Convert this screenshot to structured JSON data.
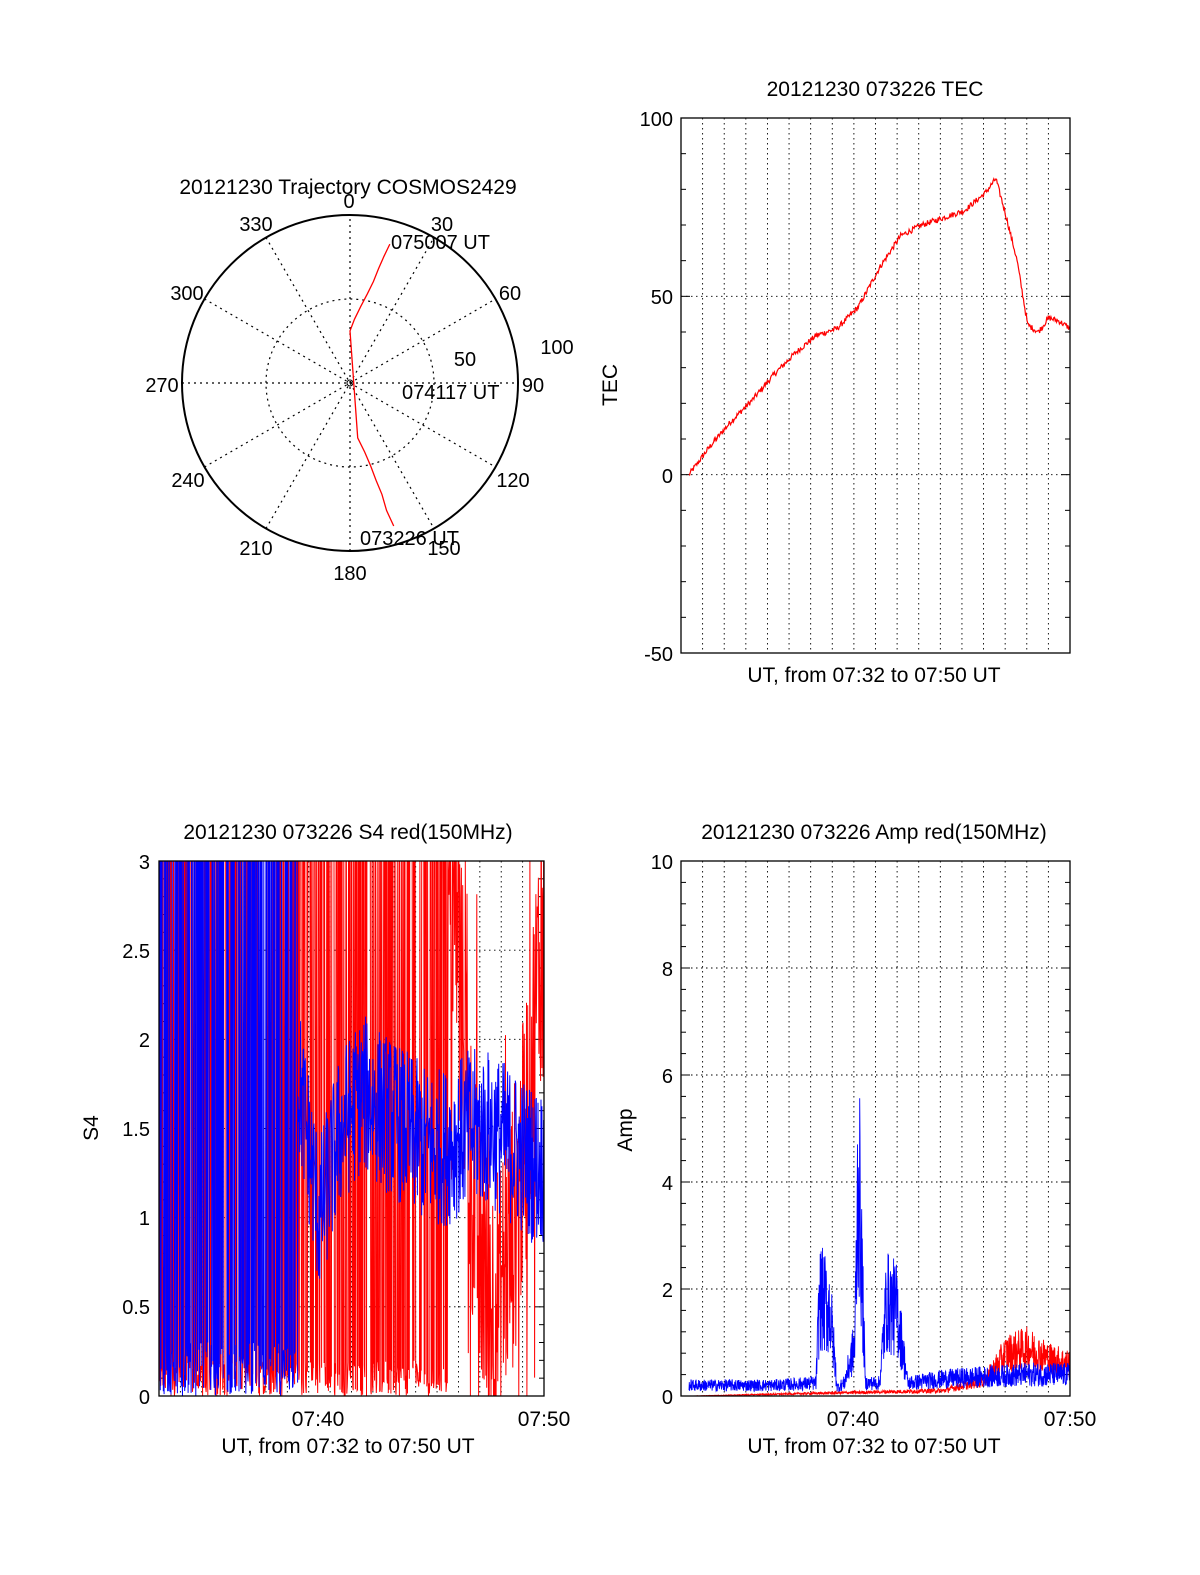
{
  "colors": {
    "red": "#ff0000",
    "blue": "#0000ff",
    "axis": "#000000",
    "grid": "#000000"
  },
  "chart_data": [
    {
      "type": "polar",
      "title": "20121230 Trajectory COSMOS2429",
      "azimuth_labels": [
        "0",
        "30",
        "60",
        "90",
        "120",
        "150",
        "180",
        "210",
        "240",
        "270",
        "300",
        "330"
      ],
      "radial_labels": [
        "50",
        "100"
      ],
      "radial_range": [
        0,
        100
      ],
      "grid": true,
      "series": [
        {
          "color": "red",
          "points_az_r": [
            [
              16,
              86
            ],
            [
              15,
              78
            ],
            [
              14,
              70
            ],
            [
              13,
              62
            ],
            [
              11,
              54
            ],
            [
              8,
              46
            ],
            [
              4,
              38
            ],
            [
              0,
              31
            ],
            [
              172,
              33
            ],
            [
              168,
              42
            ],
            [
              166,
              51
            ],
            [
              165,
              60
            ],
            [
              164,
              69
            ],
            [
              164,
              79
            ],
            [
              163,
              89
            ]
          ]
        }
      ],
      "annotations": [
        {
          "text": "075007 UT",
          "az": 16,
          "r": 86
        },
        {
          "text": "074117 UT",
          "az": 104,
          "r": 33
        },
        {
          "text": "073226 UT",
          "az": 163,
          "r": 89
        }
      ]
    },
    {
      "type": "line",
      "title": "20121230 073226 TEC",
      "xlabel": "UT, from 07:32 to 07:50 UT",
      "ylabel": "TEC",
      "xlim": [
        "07:32",
        "07:50"
      ],
      "ylim": [
        -50,
        100
      ],
      "yticks": [
        "100",
        "50",
        "0",
        "-50"
      ],
      "grid": true,
      "series": [
        {
          "color": "red",
          "x": [
            "07:32:00",
            "07:33:00",
            "07:34:00",
            "07:35:00",
            "07:36:00",
            "07:37:00",
            "07:38:00",
            "07:39:00",
            "07:40:00",
            "07:41:00",
            "07:42:00",
            "07:43:00",
            "07:44:00",
            "07:45:00",
            "07:46:00",
            "07:46:30",
            "07:47:00",
            "07:47:30",
            "07:48:00",
            "07:48:30",
            "07:49:00",
            "07:49:30",
            "07:50:00"
          ],
          "y": [
            0,
            8,
            15,
            21,
            28,
            34,
            39,
            41,
            47,
            58,
            67,
            70,
            72,
            74,
            79,
            83,
            72,
            60,
            42,
            40,
            44,
            43,
            41
          ]
        }
      ]
    },
    {
      "type": "line",
      "title": "20121230 073226 S4 red(150MHz)",
      "xlabel": "UT, from 07:32 to 07:50 UT",
      "ylabel": "S4",
      "xlim": [
        "07:32",
        "07:50"
      ],
      "ylim": [
        0,
        3
      ],
      "xticks": [
        "07:40",
        "07:50"
      ],
      "yticks": [
        "3",
        "2.5",
        "2",
        "1.5",
        "1",
        "0.5",
        "0"
      ],
      "grid": true,
      "series": [
        {
          "name": "",
          "color": "red",
          "x": [
            "07:32:00",
            "07:34:00",
            "07:36:00",
            "07:38:00",
            "07:40:00",
            "07:42:00",
            "07:44:00",
            "07:45:00",
            "07:46:00",
            "07:46:30",
            "07:47:00",
            "07:47:30",
            "07:48:00",
            "07:48:30",
            "07:49:00",
            "07:49:30",
            "07:50:00"
          ],
          "y": [
            3,
            3,
            3,
            3,
            3,
            3,
            3,
            2.9,
            2.6,
            1.4,
            0.8,
            0.5,
            0.6,
            0.9,
            1.3,
            2.0,
            2.8
          ]
        },
        {
          "name": "",
          "color": "blue",
          "x": [
            "07:32:00",
            "07:34:00",
            "07:36:00",
            "07:37:30",
            "07:38:30",
            "07:39:30",
            "07:40:30",
            "07:41:30",
            "07:42:30",
            "07:43:30",
            "07:44:30",
            "07:45:30",
            "07:46:30",
            "07:47:30",
            "07:48:30",
            "07:49:30",
            "07:50:00"
          ],
          "y": [
            3,
            3,
            3,
            2.9,
            1.8,
            1.0,
            1.5,
            1.7,
            1.6,
            1.5,
            1.4,
            1.4,
            1.5,
            1.5,
            1.4,
            1.3,
            1.3
          ]
        }
      ]
    },
    {
      "type": "line",
      "title": "20121230 073226 Amp red(150MHz)",
      "xlabel": "UT, from 07:32 to 07:50 UT",
      "ylabel": "Amp",
      "xlim": [
        "07:32",
        "07:50"
      ],
      "ylim": [
        0,
        10
      ],
      "xticks": [
        "07:40",
        "07:50"
      ],
      "yticks": [
        "10",
        "8",
        "6",
        "4",
        "2",
        "0"
      ],
      "grid": true,
      "series": [
        {
          "name": "",
          "color": "blue",
          "x": [
            "07:32:00",
            "07:36:00",
            "07:38:00",
            "07:38:10",
            "07:38:40",
            "07:39:00",
            "07:39:20",
            "07:39:50",
            "07:40:00",
            "07:40:20",
            "07:41:00",
            "07:41:20",
            "07:41:50",
            "07:42:20",
            "07:44:00",
            "07:46:00",
            "07:48:00",
            "07:50:00"
          ],
          "y": [
            0.25,
            0.25,
            0.3,
            2.3,
            2.0,
            0.2,
            0.3,
            1.2,
            5.5,
            0.3,
            0.3,
            2.2,
            2.0,
            0.3,
            0.4,
            0.45,
            0.5,
            0.5
          ]
        },
        {
          "name": "",
          "color": "red",
          "x": [
            "07:32:00",
            "07:38:00",
            "07:44:00",
            "07:46:00",
            "07:47:00",
            "07:48:00",
            "07:49:00",
            "07:50:00"
          ],
          "y": [
            0.0,
            0.05,
            0.1,
            0.3,
            0.8,
            0.9,
            0.7,
            0.6
          ]
        }
      ]
    }
  ]
}
